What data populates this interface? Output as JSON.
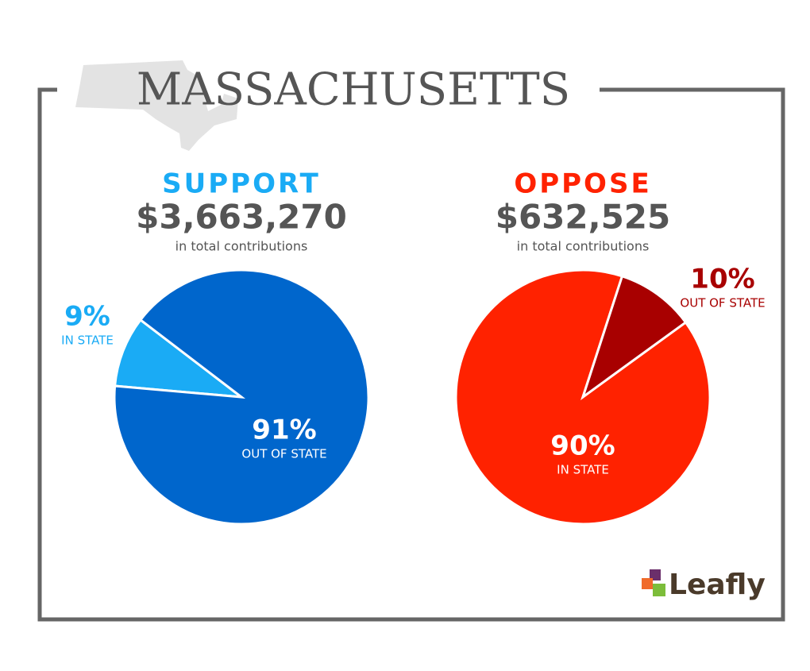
{
  "title": "MASSACHUSETTS",
  "logo": "Leafly",
  "chart_data": [
    {
      "type": "pie",
      "title": "SUPPORT",
      "subtitle": "$3,663,270",
      "caption": "in total contributions",
      "categories": [
        "IN STATE",
        "OUT OF STATE"
      ],
      "values": [
        9,
        91
      ],
      "value_labels": [
        "9%",
        "91%"
      ],
      "colors": [
        "#1aabf5",
        "#0066cc"
      ]
    },
    {
      "type": "pie",
      "title": "OPPOSE",
      "subtitle": "$632,525",
      "caption": "in total contributions",
      "categories": [
        "IN STATE",
        "OUT OF STATE"
      ],
      "values": [
        90,
        10
      ],
      "value_labels": [
        "90%",
        "10%"
      ],
      "colors": [
        "#ff2200",
        "#a80000"
      ]
    }
  ]
}
